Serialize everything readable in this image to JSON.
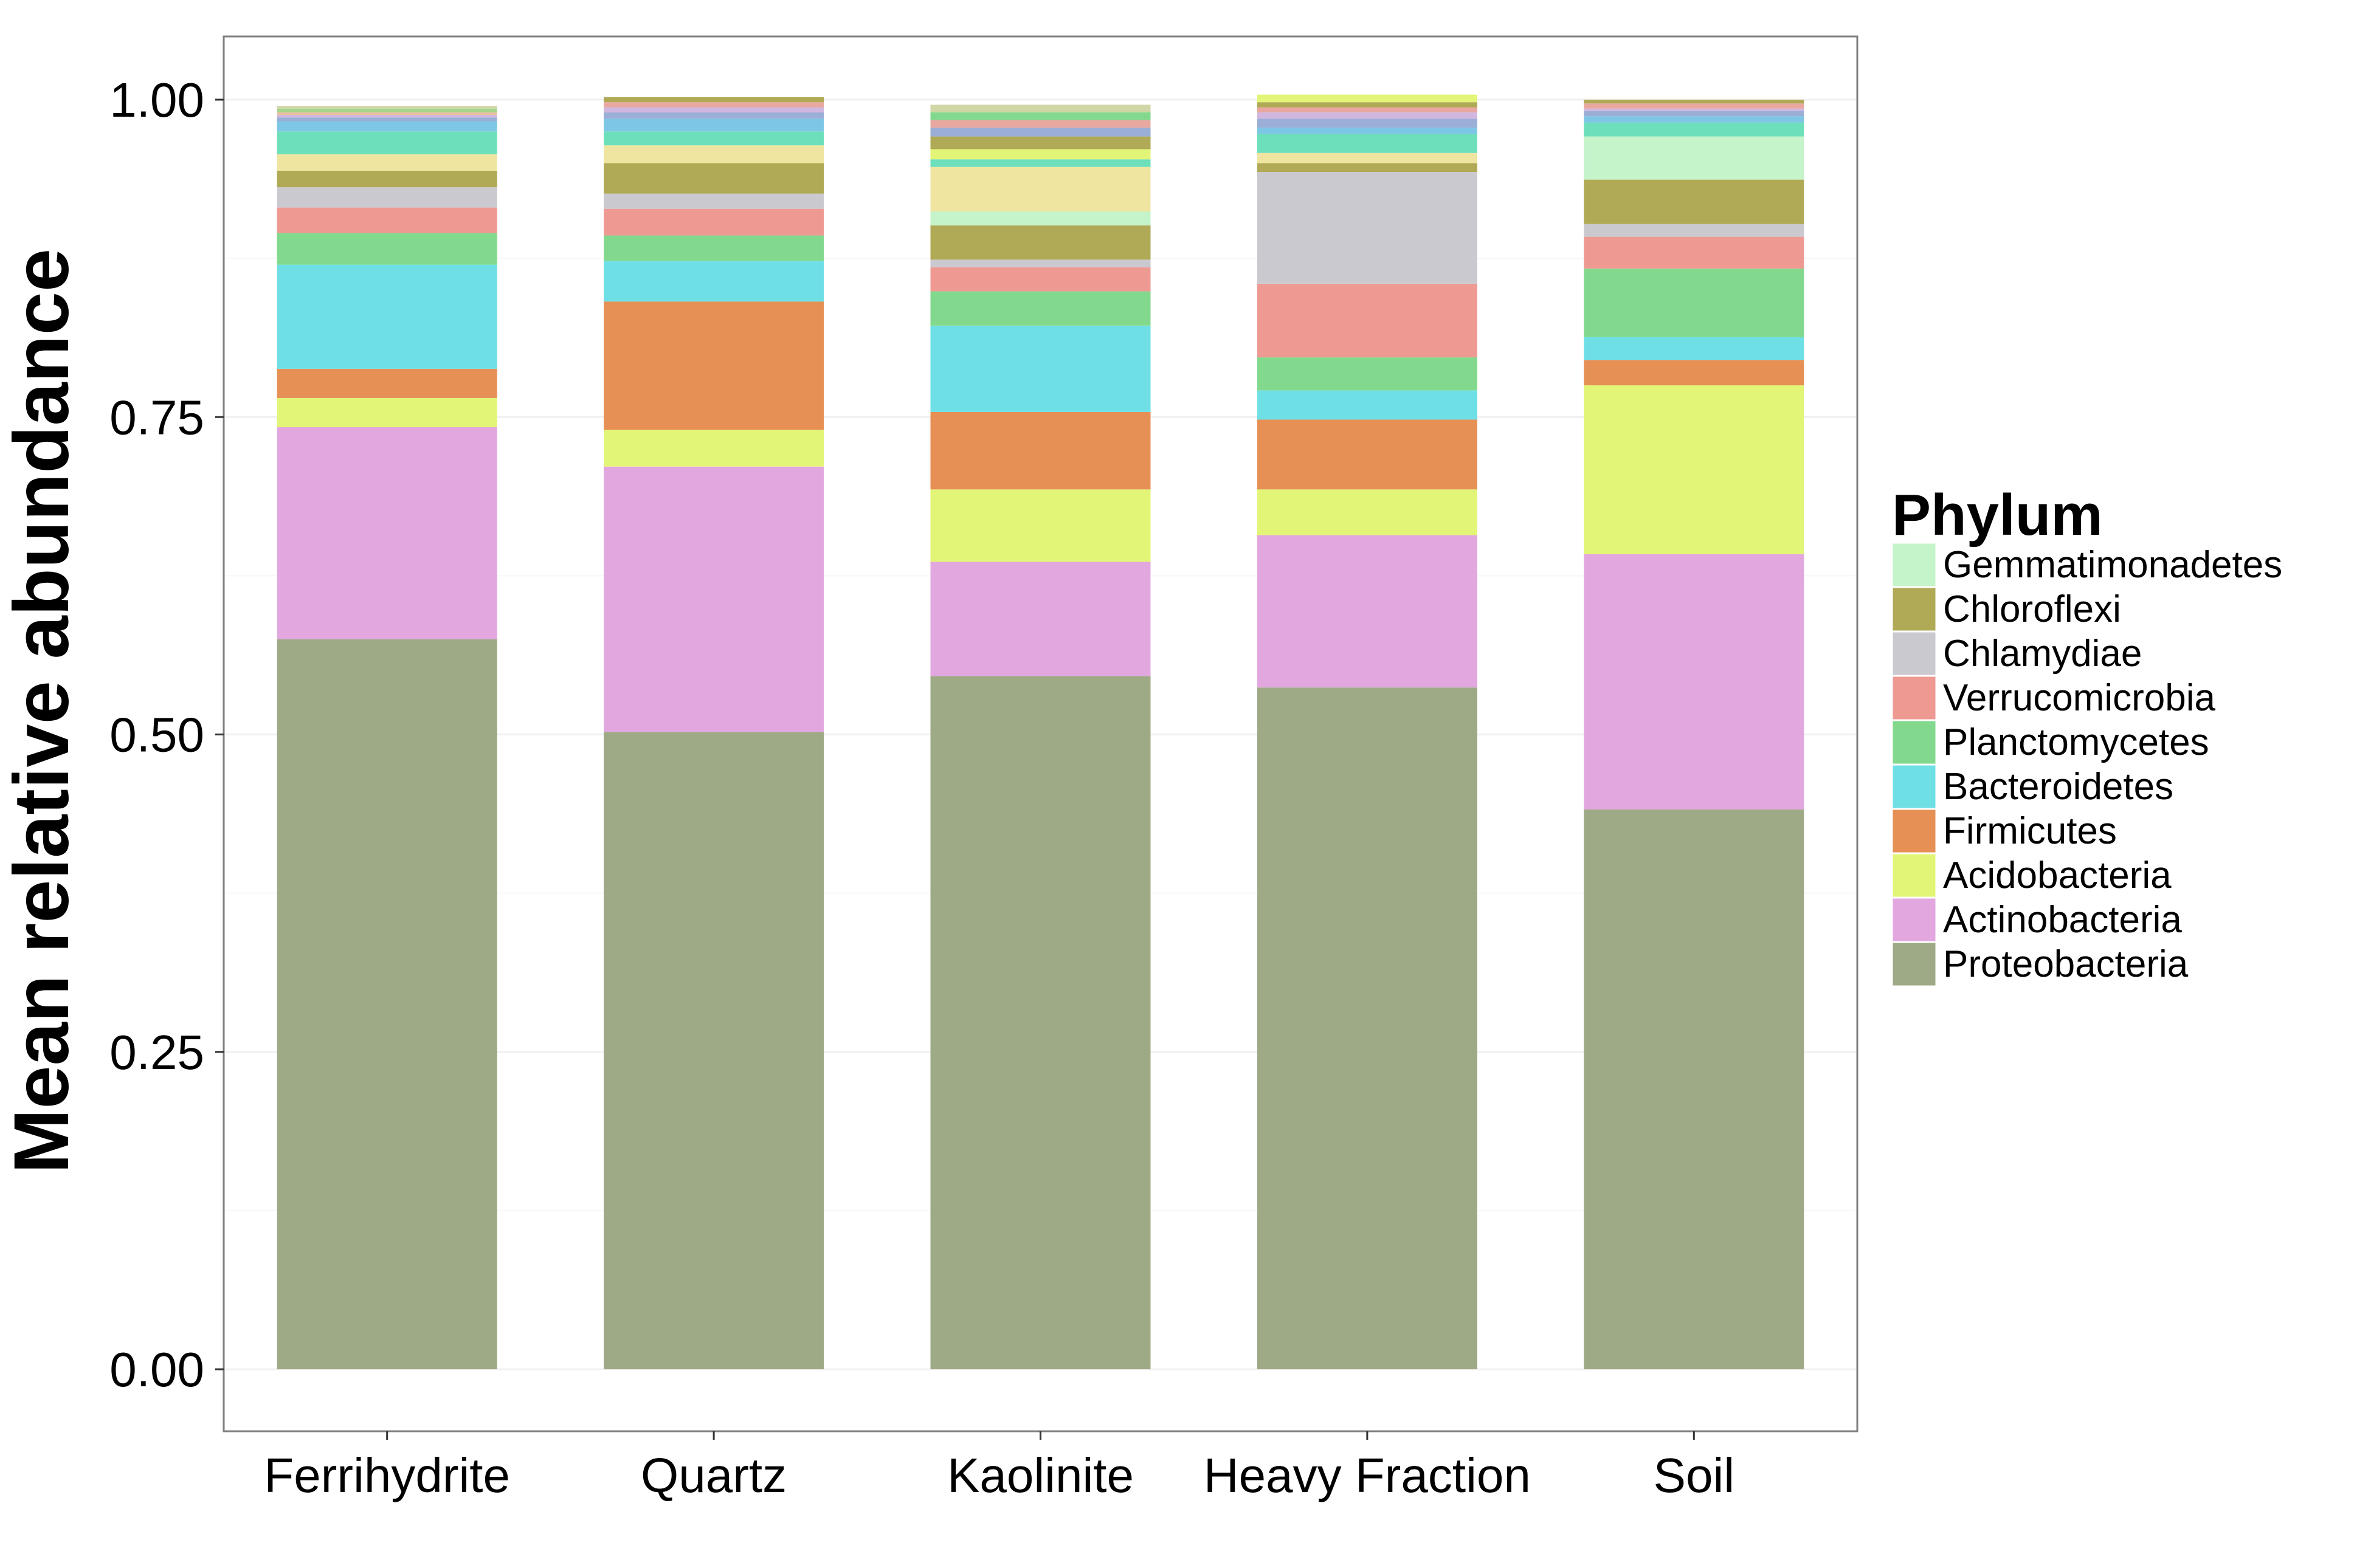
{
  "chart_data": {
    "type": "bar",
    "stacked": true,
    "ylabel": "Mean relative abundance",
    "xlabel": "",
    "ylim": [
      0,
      1.05
    ],
    "yticks": [
      "0.00",
      "0.25",
      "0.50",
      "0.75",
      "1.00"
    ],
    "ytick_values": [
      0,
      0.25,
      0.5,
      0.75,
      1.0
    ],
    "grid": true,
    "legend_title": "Phylum",
    "legend_position": "right",
    "categories": [
      "Ferrihydrite",
      "Quartz",
      "Kaolinite",
      "Heavy Fraction",
      "Soil"
    ],
    "series": [
      {
        "name": "Proteobacteria",
        "color": "#9daa85",
        "values": [
          0.575,
          0.502,
          0.546,
          0.537,
          0.441
        ]
      },
      {
        "name": "Actinobacteria",
        "color": "#e3a7e0",
        "values": [
          0.167,
          0.209,
          0.09,
          0.12,
          0.201
        ]
      },
      {
        "name": "Acidobacteria",
        "color": "#e3f577",
        "values": [
          0.023,
          0.029,
          0.057,
          0.036,
          0.133
        ]
      },
      {
        "name": "Firmicutes",
        "color": "#e69055",
        "values": [
          0.023,
          0.101,
          0.061,
          0.055,
          0.02
        ]
      },
      {
        "name": "Bacteroidetes",
        "color": "#6fdfe6",
        "values": [
          0.082,
          0.032,
          0.068,
          0.023,
          0.018
        ]
      },
      {
        "name": "Planctomycetes",
        "color": "#82d98d",
        "values": [
          0.025,
          0.02,
          0.027,
          0.026,
          0.054
        ]
      },
      {
        "name": "Verrucomicrobia",
        "color": "#ee9a93",
        "values": [
          0.02,
          0.021,
          0.019,
          0.058,
          0.025
        ]
      },
      {
        "name": "Chlamydiae",
        "color": "#cbc9d0",
        "values": [
          0.016,
          0.012,
          0.006,
          0.088,
          0.01
        ]
      },
      {
        "name": "Chloroflexi",
        "color": "#b0a955",
        "values": [
          0.013,
          0.024,
          0.027,
          0.007,
          0.035
        ]
      },
      {
        "name": "Gemmatimonadetes",
        "color": "#c5f3ca",
        "values": [
          0.0,
          0.0,
          0.011,
          0.0,
          0.034
        ]
      }
    ],
    "other_segments": [
      [
        {
          "value": 0.013,
          "color": "#f0e5a0"
        },
        {
          "value": 0.018,
          "color": "#6ddfbb"
        },
        {
          "value": 0.008,
          "color": "#7ec6e6"
        },
        {
          "value": 0.003,
          "color": "#9aaed6"
        },
        {
          "value": 0.002,
          "color": "#d1b7e0"
        },
        {
          "value": 0.002,
          "color": "#e8bfa0"
        },
        {
          "value": 0.003,
          "color": "#a8d58d"
        },
        {
          "value": 0.002,
          "color": "#d0d6a6"
        }
      ],
      [
        {
          "value": 0.014,
          "color": "#f0e5a0"
        },
        {
          "value": 0.011,
          "color": "#6ddfbb"
        },
        {
          "value": 0.01,
          "color": "#7ec6e6"
        },
        {
          "value": 0.005,
          "color": "#9aaed6"
        },
        {
          "value": 0.004,
          "color": "#d1b7e0"
        },
        {
          "value": 0.004,
          "color": "#e8a8a0"
        },
        {
          "value": 0.004,
          "color": "#b0a955"
        }
      ],
      [
        {
          "value": 0.035,
          "color": "#f0e5a0"
        },
        {
          "value": 0.006,
          "color": "#6ddfbb"
        },
        {
          "value": 0.008,
          "color": "#e3f577"
        },
        {
          "value": 0.01,
          "color": "#b0a955"
        },
        {
          "value": 0.007,
          "color": "#9aaed6"
        },
        {
          "value": 0.006,
          "color": "#e8a8a0"
        },
        {
          "value": 0.006,
          "color": "#82d98d"
        },
        {
          "value": 0.006,
          "color": "#d0d6a6"
        }
      ],
      [
        {
          "value": 0.008,
          "color": "#f0e5a0"
        },
        {
          "value": 0.015,
          "color": "#6ddfbb"
        },
        {
          "value": 0.005,
          "color": "#7ec6e6"
        },
        {
          "value": 0.007,
          "color": "#9aaed6"
        },
        {
          "value": 0.005,
          "color": "#d1b7e0"
        },
        {
          "value": 0.004,
          "color": "#e8a8a0"
        },
        {
          "value": 0.004,
          "color": "#b0a955"
        },
        {
          "value": 0.006,
          "color": "#e3f577"
        }
      ],
      [
        {
          "value": 0.011,
          "color": "#6ddfbb"
        },
        {
          "value": 0.005,
          "color": "#7ec6e6"
        },
        {
          "value": 0.004,
          "color": "#9aaed6"
        },
        {
          "value": 0.002,
          "color": "#d1b7e0"
        },
        {
          "value": 0.004,
          "color": "#e8a8a0"
        },
        {
          "value": 0.003,
          "color": "#b0a955"
        }
      ]
    ]
  }
}
